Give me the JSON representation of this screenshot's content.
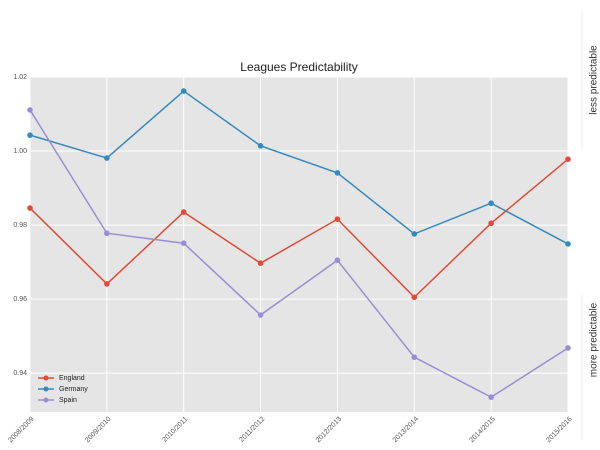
{
  "chart_data": {
    "type": "line",
    "title": "Leagues Predictability",
    "annotations": [
      "less predictable",
      "more predictable"
    ],
    "categories": [
      "2008/2009",
      "2009/2010",
      "2010/2011",
      "2011/2012",
      "2012/2013",
      "2013/2014",
      "2014/2015",
      "2015/2016"
    ],
    "series": [
      {
        "name": "England",
        "color": "#E24A33",
        "values": [
          0.9846,
          0.9641,
          0.9835,
          0.9697,
          0.9816,
          0.9605,
          0.9805,
          0.9978
        ]
      },
      {
        "name": "Germany",
        "color": "#348ABD",
        "values": [
          1.0043,
          0.9981,
          1.0162,
          1.0014,
          0.9941,
          0.9776,
          0.9859,
          0.9749
        ]
      },
      {
        "name": "Spain",
        "color": "#988ED5",
        "values": [
          1.0111,
          0.9778,
          0.9751,
          0.9557,
          0.9705,
          0.9443,
          0.9335,
          0.9468
        ]
      }
    ],
    "ylim": [
      0.9295,
      1.02
    ],
    "yticks": [
      0.94,
      0.96,
      0.98,
      {
        "value": 1,
        "label": "1.00"
      },
      1.02
    ],
    "grid": true,
    "legend": "lower left"
  }
}
